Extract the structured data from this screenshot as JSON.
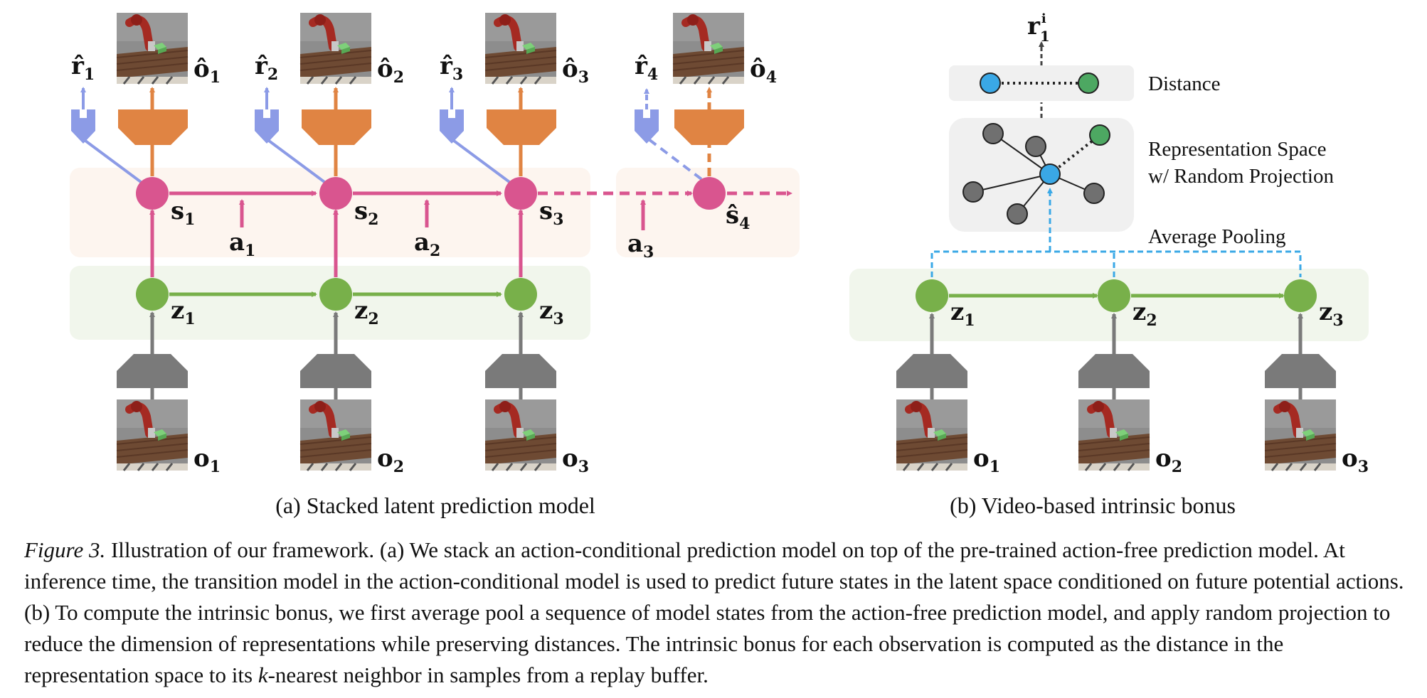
{
  "panel_a": {
    "subcaption": "(a)  Stacked latent prediction model",
    "states": [
      {
        "name": "s",
        "sub": "1"
      },
      {
        "name": "s",
        "sub": "2"
      },
      {
        "name": "s",
        "sub": "3"
      },
      {
        "name": "ŝ",
        "sub": "4"
      }
    ],
    "actions": [
      {
        "name": "a",
        "sub": "1"
      },
      {
        "name": "a",
        "sub": "2"
      },
      {
        "name": "a",
        "sub": "3"
      }
    ],
    "latents": [
      {
        "name": "z",
        "sub": "1"
      },
      {
        "name": "z",
        "sub": "2"
      },
      {
        "name": "z",
        "sub": "3"
      }
    ],
    "rewards": [
      {
        "name": "r̂",
        "sub": "1"
      },
      {
        "name": "r̂",
        "sub": "2"
      },
      {
        "name": "r̂",
        "sub": "3"
      },
      {
        "name": "r̂",
        "sub": "4"
      }
    ],
    "predicted_obs": [
      {
        "name": "ô",
        "sub": "1"
      },
      {
        "name": "ô",
        "sub": "2"
      },
      {
        "name": "ô",
        "sub": "3"
      },
      {
        "name": "ô",
        "sub": "4"
      }
    ],
    "observations": [
      {
        "name": "o",
        "sub": "1"
      },
      {
        "name": "o",
        "sub": "2"
      },
      {
        "name": "o",
        "sub": "3"
      }
    ]
  },
  "panel_b": {
    "subcaption": "(b)  Video-based intrinsic bonus",
    "distance_label": "Distance",
    "rep_space_line1": "Representation Space",
    "rep_space_line2": "w/ Random Projection",
    "pooling_label": "Average Pooling",
    "bonus": {
      "name": "r",
      "sub": "1",
      "sup": "i"
    },
    "latents": [
      {
        "name": "z",
        "sub": "1"
      },
      {
        "name": "z",
        "sub": "2"
      },
      {
        "name": "z",
        "sub": "3"
      }
    ],
    "observations": [
      {
        "name": "o",
        "sub": "1"
      },
      {
        "name": "o",
        "sub": "2"
      },
      {
        "name": "o",
        "sub": "3"
      }
    ]
  },
  "caption": {
    "figure_label": "Figure 3.",
    "text": " Illustration of our framework. (a) We stack an action-conditional prediction model on top of the pre-trained action-free prediction model. At inference time, the transition model in the action-conditional model is used to predict future states in the latent space conditioned on future potential actions. (b) To compute the intrinsic bonus, we first average pool a sequence of model states from the action-free prediction model, and apply random projection to reduce the dimension of representations while preserving distances. The intrinsic bonus for each observation is computed as the distance in the representation space to its ",
    "k_symbol": "k",
    "text_end": "-nearest neighbor in samples from a replay buffer."
  },
  "colors": {
    "pink": "#d9558f",
    "green": "#78b04a",
    "orange": "#e08443",
    "periwinkle": "#8c9be6",
    "gray": "#7a7a7a",
    "blue": "#3aa8e6",
    "node_gray": "#707070",
    "node_green": "#4da862"
  }
}
